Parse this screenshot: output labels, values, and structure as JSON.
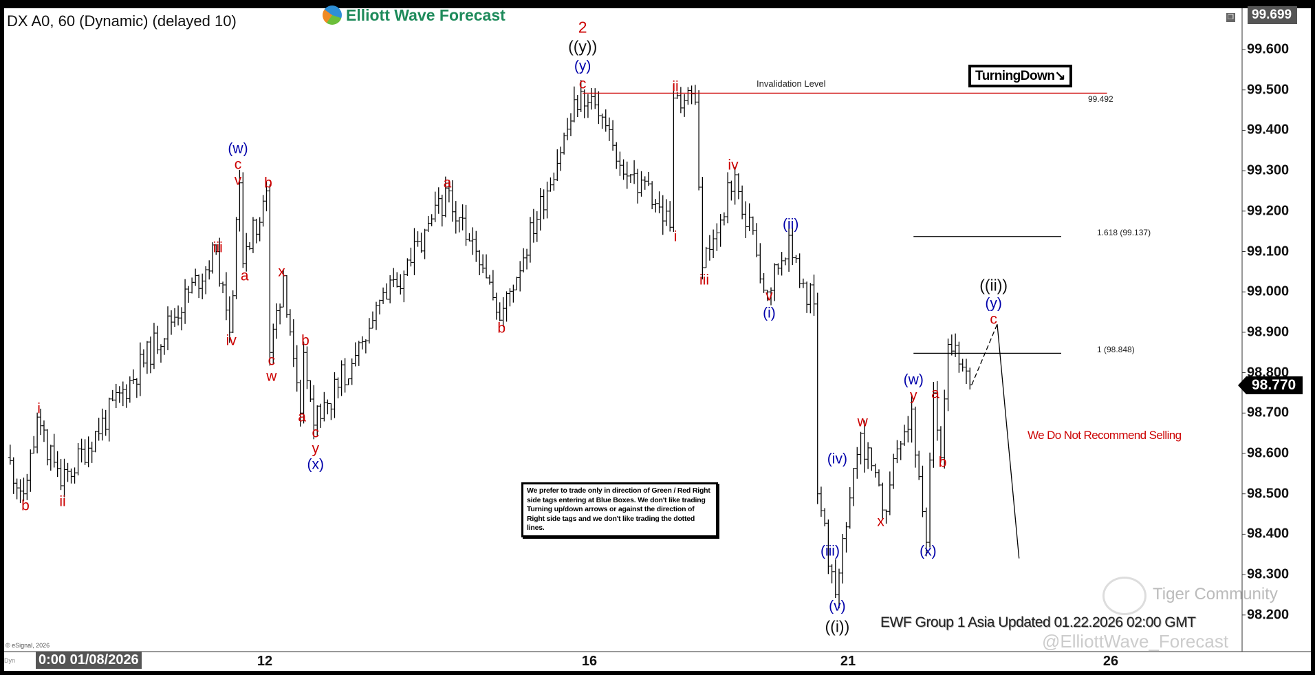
{
  "header": {
    "title": "DX A0, 60 (Dynamic) (delayed 10)",
    "logo_text": "Elliott Wave Forecast",
    "restore_icon": "restore-window-icon"
  },
  "price_tags": {
    "top": "99.699",
    "current": "98.770"
  },
  "time_axis": {
    "first": "0:00 01/08/2026",
    "labels": [
      {
        "day": "01/12",
        "text": "12"
      },
      {
        "day": "01/16",
        "text": "16"
      },
      {
        "day": "01/21",
        "text": "21"
      },
      {
        "day": "01/26",
        "text": "26"
      }
    ],
    "left_stub": "Dyn"
  },
  "copyright": "© eSignal, 2026",
  "turning_tag": {
    "text": "TurningDown",
    "arrow": "↘"
  },
  "note": "We prefer to trade only in direction of Green / Red Right side tags entering at Blue Boxes. We don't like trading Turning up/down arrows or against the direction of Right side tags and we don't like trading the dotted lines.",
  "recommendation": "We Do Not Recommend Selling",
  "update_text": "EWF Group 1 Asia Updated 01.22.2026 02:00 GMT",
  "watermarks": {
    "handle": "@ElliottWave_Forecast",
    "community": "Tiger Community"
  },
  "colors": {
    "red": "#cc0000",
    "blue": "#0000aa",
    "black": "#111111",
    "invalidation": "#cc0000"
  },
  "chart_data": {
    "type": "line",
    "style": "ohlc-bars",
    "ylim": [
      98.15,
      99.7
    ],
    "yticks": [
      "99.600",
      "99.500",
      "99.400",
      "99.300",
      "99.200",
      "99.100",
      "99.000",
      "98.900",
      "98.800",
      "98.700",
      "98.600",
      "98.500",
      "98.400",
      "98.300",
      "98.200"
    ],
    "grid": false,
    "wave_path": {
      "x": [
        "01/06 20",
        "01/07 01",
        "01/07 05",
        "01/07 12",
        "01/09 10",
        "01/09 14",
        "01/09 17",
        "01/09 18",
        "01/12 01",
        "01/12 02",
        "01/12 06",
        "01/12 11",
        "01/12 12",
        "01/12 15",
        "01/14 07",
        "01/14 22",
        "01/15 22",
        "01/16 12",
        "01/16 20",
        "01/16 23",
        "01/19 00",
        "01/19 06",
        "01/19 08",
        "01/19 17",
        "01/20 02",
        "01/20 08",
        "01/20 11",
        "01/20 15",
        "01/20 16",
        "01/20 21",
        "01/21 04",
        "01/21 10",
        "01/21 18",
        "01/21 22",
        "01/22 00",
        "01/22 02",
        "01/22 04",
        "01/22 10"
      ],
      "y": [
        98.59,
        98.5,
        98.69,
        98.52,
        99.1,
        98.9,
        99.27,
        99.07,
        99.25,
        98.85,
        99.04,
        98.7,
        98.85,
        98.67,
        99.25,
        98.93,
        99.497,
        99.29,
        99.21,
        99.16,
        99.48,
        99.47,
        99.06,
        99.29,
        99.0,
        99.14,
        99.02,
        98.97,
        98.5,
        98.25,
        98.65,
        98.46,
        98.71,
        98.38,
        98.75,
        98.59,
        98.87,
        98.77
      ]
    },
    "projection": {
      "x": [
        "01/22 10",
        "01/22 17",
        "01/22 23"
      ],
      "y": [
        98.77,
        98.92,
        98.34
      ]
    },
    "levels": [
      {
        "label": "Invalidation Level",
        "value_label": "99.492",
        "value": 99.492,
        "from": "01/15 22",
        "to": "01/24 22"
      },
      {
        "label": "1.618 (99.137)",
        "value": 99.137,
        "from": "01/21 18",
        "to": "01/23 21"
      },
      {
        "label": "1 (98.848)",
        "value": 98.848,
        "from": "01/21 18",
        "to": "01/23 21"
      }
    ],
    "wave_labels": [
      {
        "t": "01/07 01",
        "p": 98.47,
        "text": "b",
        "c": "red"
      },
      {
        "t": "01/07 05",
        "p": 98.71,
        "text": "i",
        "c": "red"
      },
      {
        "t": "01/07 12",
        "p": 98.48,
        "text": "ii",
        "c": "red"
      },
      {
        "t": "01/09 10",
        "p": 99.11,
        "text": "iii",
        "c": "red"
      },
      {
        "t": "01/09 14",
        "p": 98.88,
        "text": "iv",
        "c": "red"
      },
      {
        "t": "01/09 18",
        "p": 99.04,
        "text": "a",
        "c": "red"
      },
      {
        "t": "01/09 16",
        "p": 99.29,
        "text": "v",
        "c": "red"
      },
      {
        "t": "01/09 16",
        "p": 99.32,
        "text": "c",
        "c": "red"
      },
      {
        "t": "01/09 16",
        "p": 99.355,
        "text": "(w)",
        "c": "blue"
      },
      {
        "t": "01/12 01",
        "p": 99.27,
        "text": "b",
        "c": "red"
      },
      {
        "t": "01/12 02",
        "p": 98.83,
        "text": "c",
        "c": "red"
      },
      {
        "t": "01/12 02",
        "p": 98.8,
        "text": "w",
        "c": "red"
      },
      {
        "t": "01/12 05",
        "p": 99.05,
        "text": "x",
        "c": "red"
      },
      {
        "t": "01/12 12",
        "p": 98.88,
        "text": "b",
        "c": "red"
      },
      {
        "t": "01/12 11",
        "p": 98.69,
        "text": "a",
        "c": "red"
      },
      {
        "t": "01/12 15",
        "p": 98.653,
        "text": "c",
        "c": "red"
      },
      {
        "t": "01/12 15",
        "p": 98.62,
        "text": "y",
        "c": "red"
      },
      {
        "t": "01/12 15",
        "p": 98.58,
        "text": "(x)",
        "c": "blue"
      },
      {
        "t": "01/14 06",
        "p": 99.27,
        "text": "a",
        "c": "red"
      },
      {
        "t": "01/14 22",
        "p": 98.91,
        "text": "b",
        "c": "red"
      },
      {
        "t": "01/15 22",
        "p": 99.655,
        "text": "2",
        "c": "red"
      },
      {
        "t": "01/15 22",
        "p": 99.607,
        "text": "((y))",
        "c": "black"
      },
      {
        "t": "01/15 22",
        "p": 99.559,
        "text": "(y)",
        "c": "blue"
      },
      {
        "t": "01/15 22",
        "p": 99.515,
        "text": "c",
        "c": "red"
      },
      {
        "t": "01/19 00",
        "p": 99.508,
        "text": "ii",
        "c": "red"
      },
      {
        "t": "01/19 00",
        "p": 99.137,
        "text": "i",
        "c": "red"
      },
      {
        "t": "01/19 08",
        "p": 99.03,
        "text": "iii",
        "c": "red"
      },
      {
        "t": "01/19 16",
        "p": 99.314,
        "text": "iv",
        "c": "red"
      },
      {
        "t": "01/20 08",
        "p": 99.167,
        "text": "(ii)",
        "c": "blue"
      },
      {
        "t": "01/20 02",
        "p": 98.99,
        "text": "v",
        "c": "red"
      },
      {
        "t": "01/20 02",
        "p": 98.948,
        "text": "(i)",
        "c": "blue"
      },
      {
        "t": "01/20 21",
        "p": 98.586,
        "text": "(iv)",
        "c": "blue"
      },
      {
        "t": "01/20 19",
        "p": 98.358,
        "text": "(iii)",
        "c": "blue"
      },
      {
        "t": "01/20 21",
        "p": 98.222,
        "text": "(v)",
        "c": "blue"
      },
      {
        "t": "01/20 21",
        "p": 98.171,
        "text": "((i))",
        "c": "black"
      },
      {
        "t": "01/21 04",
        "p": 98.678,
        "text": "w",
        "c": "red"
      },
      {
        "t": "01/21 09",
        "p": 98.431,
        "text": "x",
        "c": "red"
      },
      {
        "t": "01/21 18",
        "p": 98.782,
        "text": "(w)",
        "c": "blue"
      },
      {
        "t": "01/21 18",
        "p": 98.743,
        "text": "y",
        "c": "red"
      },
      {
        "t": "01/22 00",
        "p": 98.748,
        "text": "a",
        "c": "red"
      },
      {
        "t": "01/22 02",
        "p": 98.578,
        "text": "b",
        "c": "red"
      },
      {
        "t": "01/21 22",
        "p": 98.358,
        "text": "(x)",
        "c": "blue"
      },
      {
        "t": "01/22 16",
        "p": 99.016,
        "text": "((ii))",
        "c": "black"
      },
      {
        "t": "01/22 16",
        "p": 98.971,
        "text": "(y)",
        "c": "blue"
      },
      {
        "t": "01/22 16",
        "p": 98.936,
        "text": "c",
        "c": "red"
      }
    ]
  }
}
